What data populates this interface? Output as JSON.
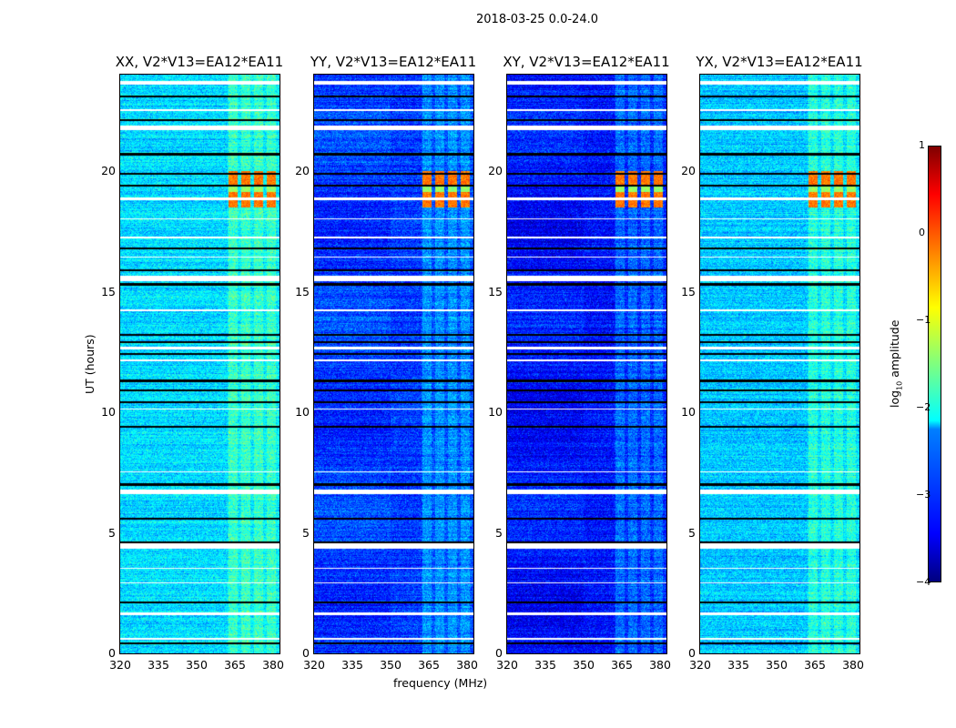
{
  "chart_data": {
    "type": "heatmap",
    "title": "2018-03-25 0.0-24.0",
    "xlabel": "frequency (MHz)",
    "ylabel": "UT (hours)",
    "xlim": [
      320,
      382.5
    ],
    "ylim": [
      0,
      24
    ],
    "xticks": [
      "320",
      "335",
      "350",
      "365",
      "380"
    ],
    "yticks": [
      "0",
      "5",
      "10",
      "15",
      "20"
    ],
    "colorbar": {
      "label_main": "log",
      "label_sub": "10",
      "label_rest": " amplitude",
      "range": [
        -4,
        1
      ],
      "ticks": [
        "1",
        "0",
        "−1",
        "−2",
        "−3",
        "−4"
      ],
      "colormap": "jet"
    },
    "panels": [
      {
        "title": "XX, V2*V13=EA12*EA11",
        "base_log_amp": -2.3
      },
      {
        "title": "YY, V2*V13=EA12*EA11",
        "base_log_amp": -3.1
      },
      {
        "title": "XY, V2*V13=EA12*EA11",
        "base_log_amp": -3.3
      },
      {
        "title": "YX, V2*V13=EA12*EA11",
        "base_log_amp": -2.4
      }
    ],
    "rfi": {
      "freq_range_mhz": [
        362,
        382
      ],
      "hours": [
        18.5,
        20.0
      ],
      "peak_log_amp": -0.2
    },
    "flagged_hours": [
      [
        0.55,
        0.65
      ],
      [
        1.6,
        1.7
      ],
      [
        2.9,
        2.95
      ],
      [
        3.5,
        3.55
      ],
      [
        4.35,
        4.55
      ],
      [
        6.6,
        6.8
      ],
      [
        7.5,
        7.55
      ],
      [
        10.1,
        10.15
      ],
      [
        12.1,
        12.2
      ],
      [
        12.6,
        12.7
      ],
      [
        14.2,
        14.25
      ],
      [
        15.45,
        15.65
      ],
      [
        16.4,
        16.45
      ],
      [
        17.2,
        17.3
      ],
      [
        18.0,
        18.05
      ],
      [
        18.8,
        18.9
      ],
      [
        21.7,
        21.9
      ],
      [
        22.5,
        22.55
      ],
      [
        23.6,
        23.75
      ]
    ],
    "dark_hours": [
      0.4,
      2.1,
      4.6,
      5.6,
      7.0,
      9.4,
      10.4,
      10.9,
      11.3,
      12.4,
      12.9,
      13.2,
      15.3,
      15.9,
      16.8,
      19.4,
      19.9,
      20.7,
      22.1,
      23.1
    ]
  }
}
